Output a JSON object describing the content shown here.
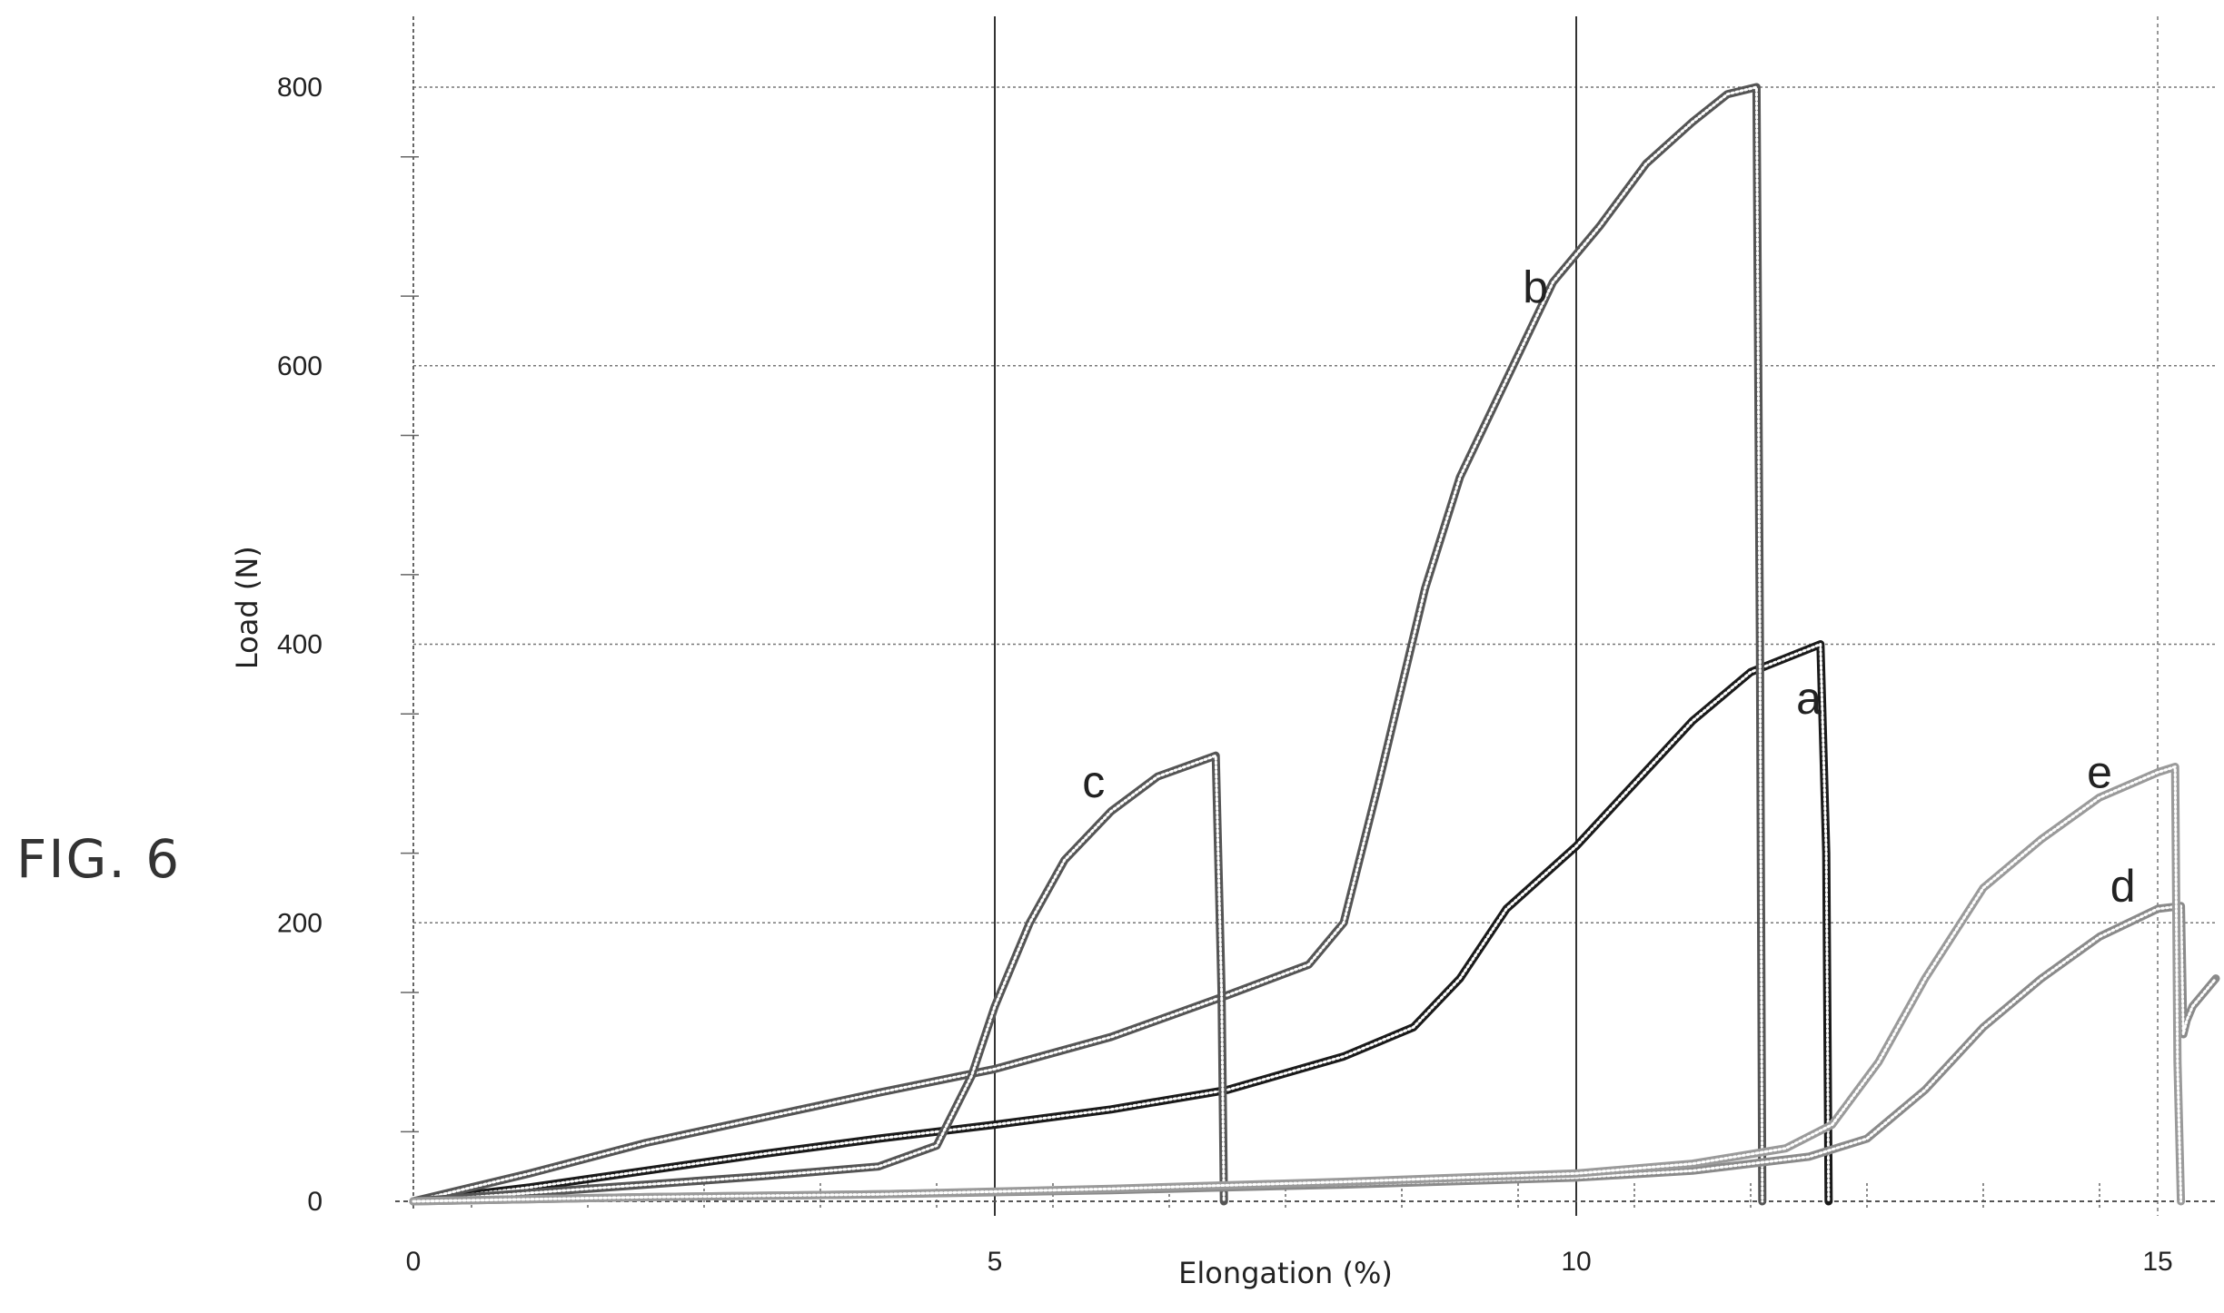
{
  "figure_label": "FIG. 6",
  "chart_data": {
    "type": "line",
    "title": "",
    "xlabel": "Elongation (%)",
    "ylabel": "Load (N)",
    "xlim": [
      0,
      15.5
    ],
    "ylim": [
      0,
      850
    ],
    "xticks": [
      0,
      5,
      10,
      15
    ],
    "yticks": [
      0,
      200,
      400,
      600,
      800
    ],
    "grid": true,
    "series": [
      {
        "name": "a",
        "color": "#1a1a1a",
        "x": [
          0,
          1,
          2,
          3,
          4,
          5,
          6,
          7,
          8,
          8.6,
          9,
          9.4,
          10,
          10.5,
          11,
          11.5,
          12.1,
          12.15,
          12.17
        ],
        "y": [
          0,
          10,
          22,
          34,
          45,
          55,
          66,
          80,
          104,
          125,
          160,
          210,
          255,
          300,
          345,
          380,
          400,
          250,
          0
        ]
      },
      {
        "name": "b",
        "color": "#555555",
        "x": [
          0,
          1,
          2,
          3,
          4,
          5,
          6,
          7,
          7.7,
          8,
          8.3,
          8.7,
          9,
          9.4,
          9.8,
          10.2,
          10.6,
          11,
          11.3,
          11.55,
          11.58,
          11.6
        ],
        "y": [
          0,
          20,
          42,
          60,
          78,
          95,
          118,
          148,
          170,
          200,
          300,
          440,
          520,
          590,
          660,
          700,
          745,
          775,
          795,
          800,
          400,
          0
        ]
      },
      {
        "name": "c",
        "color": "#555555",
        "x": [
          0,
          1,
          2,
          3,
          4,
          4.5,
          4.8,
          5,
          5.3,
          5.6,
          6,
          6.4,
          6.9,
          6.95,
          6.97
        ],
        "y": [
          0,
          6,
          12,
          18,
          25,
          40,
          90,
          140,
          200,
          245,
          280,
          305,
          320,
          150,
          0
        ]
      },
      {
        "name": "d",
        "color": "#8a8a8a",
        "x": [
          0,
          2,
          4,
          6,
          8,
          10,
          11,
          12,
          12.5,
          13,
          13.5,
          14,
          14.5,
          15,
          15.2,
          15.22,
          15.25,
          15.3,
          15.5
        ],
        "y": [
          0,
          3,
          5,
          8,
          12,
          17,
          22,
          32,
          45,
          80,
          125,
          160,
          190,
          210,
          212,
          120,
          130,
          140,
          160
        ]
      },
      {
        "name": "e",
        "color": "#9a9a9a",
        "x": [
          0,
          2,
          4,
          6,
          8,
          10,
          11,
          11.8,
          12.2,
          12.6,
          13,
          13.5,
          14,
          14.5,
          15,
          15.15,
          15.17,
          15.2
        ],
        "y": [
          0,
          3,
          5,
          9,
          14,
          20,
          27,
          38,
          55,
          100,
          160,
          225,
          260,
          290,
          308,
          312,
          100,
          0
        ]
      }
    ],
    "annotations": [
      {
        "text": "a",
        "x": 12.0,
        "y": 350
      },
      {
        "text": "b",
        "x": 9.65,
        "y": 645
      },
      {
        "text": "c",
        "x": 5.85,
        "y": 290
      },
      {
        "text": "d",
        "x": 14.7,
        "y": 215
      },
      {
        "text": "e",
        "x": 14.5,
        "y": 297
      }
    ]
  }
}
